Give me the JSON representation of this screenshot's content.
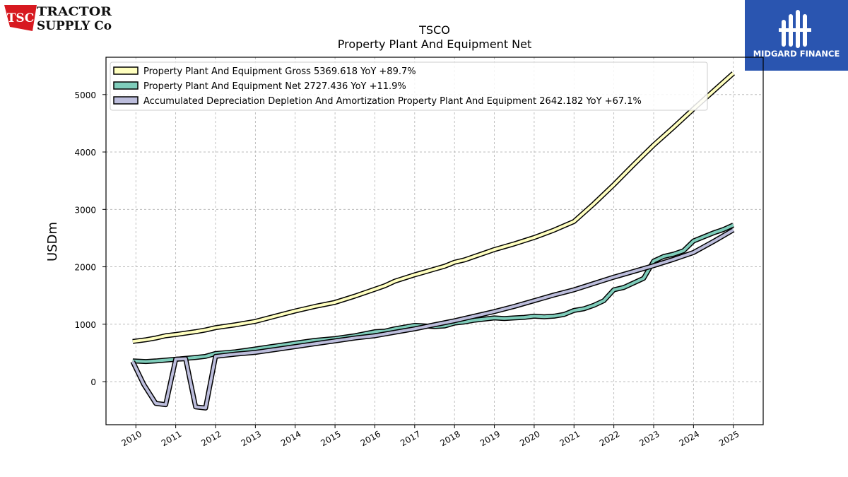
{
  "logos": {
    "tsc": {
      "badge": "TSC",
      "line1": "TRACTOR",
      "line2": "SUPPLY Co",
      "color": "#d71920"
    },
    "midgard": {
      "text": "MIDGARD FINANCE",
      "bg": "#2a55b0"
    }
  },
  "chart_data": {
    "type": "line",
    "title": "TSCO",
    "subtitle": "Property Plant And Equipment Net",
    "xlabel": "",
    "ylabel": "USDm",
    "xlim": [
      2009.25,
      2025.75
    ],
    "ylim": [
      -750,
      5650
    ],
    "x_ticks": [
      2010,
      2011,
      2012,
      2013,
      2014,
      2015,
      2016,
      2017,
      2018,
      2019,
      2020,
      2021,
      2022,
      2023,
      2024,
      2025
    ],
    "y_ticks": [
      0,
      1000,
      2000,
      3000,
      4000,
      5000
    ],
    "grid": true,
    "legend_position": "top-left",
    "series": [
      {
        "name": "Property Plant And Equipment Gross",
        "legend": "Property Plant And Equipment Gross  5369.618 YoY +89.7%",
        "color": "#ffffbf",
        "points": [
          [
            2009.92,
            700
          ],
          [
            2010.25,
            730
          ],
          [
            2010.5,
            760
          ],
          [
            2010.75,
            800
          ],
          [
            2011.0,
            820
          ],
          [
            2011.5,
            870
          ],
          [
            2011.75,
            900
          ],
          [
            2012.0,
            940
          ],
          [
            2012.5,
            990
          ],
          [
            2013.0,
            1050
          ],
          [
            2013.5,
            1140
          ],
          [
            2014.0,
            1230
          ],
          [
            2014.5,
            1310
          ],
          [
            2015.0,
            1380
          ],
          [
            2015.5,
            1490
          ],
          [
            2016.0,
            1610
          ],
          [
            2016.25,
            1670
          ],
          [
            2016.5,
            1750
          ],
          [
            2017.0,
            1860
          ],
          [
            2017.25,
            1910
          ],
          [
            2017.5,
            1960
          ],
          [
            2017.75,
            2010
          ],
          [
            2018.0,
            2080
          ],
          [
            2018.25,
            2120
          ],
          [
            2018.5,
            2180
          ],
          [
            2018.75,
            2240
          ],
          [
            2019.0,
            2300
          ],
          [
            2019.5,
            2400
          ],
          [
            2020.0,
            2510
          ],
          [
            2020.5,
            2640
          ],
          [
            2021.0,
            2790
          ],
          [
            2021.5,
            3100
          ],
          [
            2022.0,
            3430
          ],
          [
            2022.5,
            3780
          ],
          [
            2023.0,
            4120
          ],
          [
            2023.5,
            4430
          ],
          [
            2024.0,
            4750
          ],
          [
            2024.5,
            5060
          ],
          [
            2025.0,
            5369.618
          ]
        ]
      },
      {
        "name": "Property Plant And Equipment Net",
        "legend": "Property Plant And Equipment Net  2727.436 YoY +11.9%",
        "color": "#7fcdbb",
        "points": [
          [
            2009.92,
            360
          ],
          [
            2010.25,
            350
          ],
          [
            2010.5,
            360
          ],
          [
            2011.0,
            390
          ],
          [
            2011.5,
            420
          ],
          [
            2011.75,
            440
          ],
          [
            2012.0,
            490
          ],
          [
            2012.5,
            520
          ],
          [
            2013.0,
            570
          ],
          [
            2013.5,
            620
          ],
          [
            2014.0,
            670
          ],
          [
            2014.5,
            720
          ],
          [
            2015.0,
            750
          ],
          [
            2015.5,
            800
          ],
          [
            2016.0,
            870
          ],
          [
            2016.25,
            880
          ],
          [
            2016.5,
            920
          ],
          [
            2017.0,
            980
          ],
          [
            2017.25,
            970
          ],
          [
            2017.5,
            960
          ],
          [
            2017.75,
            970
          ],
          [
            2018.0,
            1020
          ],
          [
            2018.25,
            1040
          ],
          [
            2018.5,
            1070
          ],
          [
            2018.75,
            1090
          ],
          [
            2019.0,
            1110
          ],
          [
            2019.25,
            1100
          ],
          [
            2019.5,
            1110
          ],
          [
            2019.75,
            1120
          ],
          [
            2020.0,
            1140
          ],
          [
            2020.25,
            1130
          ],
          [
            2020.5,
            1140
          ],
          [
            2020.75,
            1170
          ],
          [
            2021.0,
            1240
          ],
          [
            2021.25,
            1270
          ],
          [
            2021.5,
            1330
          ],
          [
            2021.75,
            1410
          ],
          [
            2022.0,
            1600
          ],
          [
            2022.25,
            1640
          ],
          [
            2022.5,
            1720
          ],
          [
            2022.75,
            1800
          ],
          [
            2023.0,
            2100
          ],
          [
            2023.25,
            2180
          ],
          [
            2023.5,
            2220
          ],
          [
            2023.75,
            2280
          ],
          [
            2024.0,
            2450
          ],
          [
            2024.25,
            2520
          ],
          [
            2024.5,
            2590
          ],
          [
            2024.75,
            2650
          ],
          [
            2025.0,
            2727.436
          ]
        ]
      },
      {
        "name": "Accumulated Depreciation Depletion And Amortization Property Plant And Equipment",
        "legend": "Accumulated Depreciation Depletion And Amortization Property Plant And Equipment  2642.182 YoY +67.1%",
        "color": "#bcbddc",
        "points": [
          [
            2009.92,
            350
          ],
          [
            2010.2,
            -50
          ],
          [
            2010.5,
            -380
          ],
          [
            2010.75,
            -400
          ],
          [
            2011.0,
            390
          ],
          [
            2011.25,
            400
          ],
          [
            2011.5,
            -440
          ],
          [
            2011.75,
            -460
          ],
          [
            2012.0,
            440
          ],
          [
            2012.5,
            480
          ],
          [
            2013.0,
            510
          ],
          [
            2013.5,
            560
          ],
          [
            2014.0,
            610
          ],
          [
            2014.5,
            660
          ],
          [
            2015.0,
            710
          ],
          [
            2015.5,
            760
          ],
          [
            2016.0,
            800
          ],
          [
            2016.5,
            860
          ],
          [
            2017.0,
            920
          ],
          [
            2017.5,
            990
          ],
          [
            2018.0,
            1060
          ],
          [
            2018.5,
            1140
          ],
          [
            2019.0,
            1220
          ],
          [
            2019.5,
            1310
          ],
          [
            2020.0,
            1410
          ],
          [
            2020.5,
            1510
          ],
          [
            2021.0,
            1600
          ],
          [
            2021.5,
            1710
          ],
          [
            2022.0,
            1820
          ],
          [
            2022.5,
            1920
          ],
          [
            2023.0,
            2020
          ],
          [
            2023.5,
            2130
          ],
          [
            2024.0,
            2250
          ],
          [
            2024.5,
            2440
          ],
          [
            2025.0,
            2642.182
          ]
        ]
      }
    ]
  }
}
